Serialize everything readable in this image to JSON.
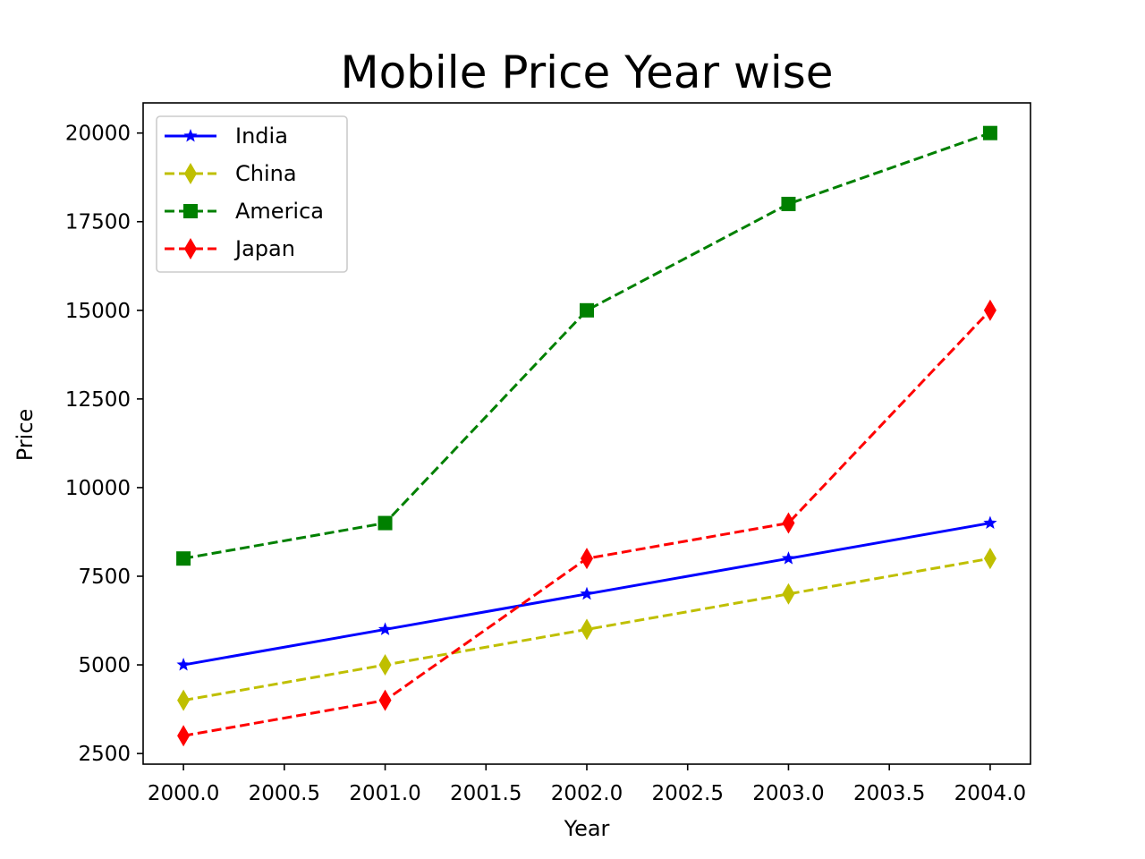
{
  "chart_data": {
    "type": "line",
    "title": "Mobile Price Year wise",
    "xlabel": "Year",
    "ylabel": "Price",
    "x": [
      2000,
      2001,
      2002,
      2003,
      2004
    ],
    "xlim": [
      1999.8,
      2004.2
    ],
    "ylim": [
      2200,
      20850
    ],
    "x_ticks": [
      2000.0,
      2000.5,
      2001.0,
      2001.5,
      2002.0,
      2002.5,
      2003.0,
      2003.5,
      2004.0
    ],
    "x_tick_labels": [
      "2000.0",
      "2000.5",
      "2001.0",
      "2001.5",
      "2002.0",
      "2002.5",
      "2003.0",
      "2003.5",
      "2004.0"
    ],
    "y_ticks": [
      2500,
      5000,
      7500,
      10000,
      12500,
      15000,
      17500,
      20000
    ],
    "y_tick_labels": [
      "2500",
      "5000",
      "7500",
      "10000",
      "12500",
      "15000",
      "17500",
      "20000"
    ],
    "grid": false,
    "legend_position": "top-left",
    "series": [
      {
        "name": "India",
        "values": [
          5000,
          6000,
          7000,
          8000,
          9000
        ],
        "color": "#0000ff",
        "dash": "solid",
        "marker": "star"
      },
      {
        "name": "China",
        "values": [
          4000,
          5000,
          6000,
          7000,
          8000
        ],
        "color": "#bfbf00",
        "dash": "dashed",
        "marker": "thin-diamond"
      },
      {
        "name": "America",
        "values": [
          8000,
          9000,
          15000,
          18000,
          20000
        ],
        "color": "#008000",
        "dash": "dashed",
        "marker": "square"
      },
      {
        "name": "Japan",
        "values": [
          3000,
          4000,
          8000,
          9000,
          15000
        ],
        "color": "#ff0000",
        "dash": "dashed",
        "marker": "thin-diamond"
      }
    ]
  }
}
